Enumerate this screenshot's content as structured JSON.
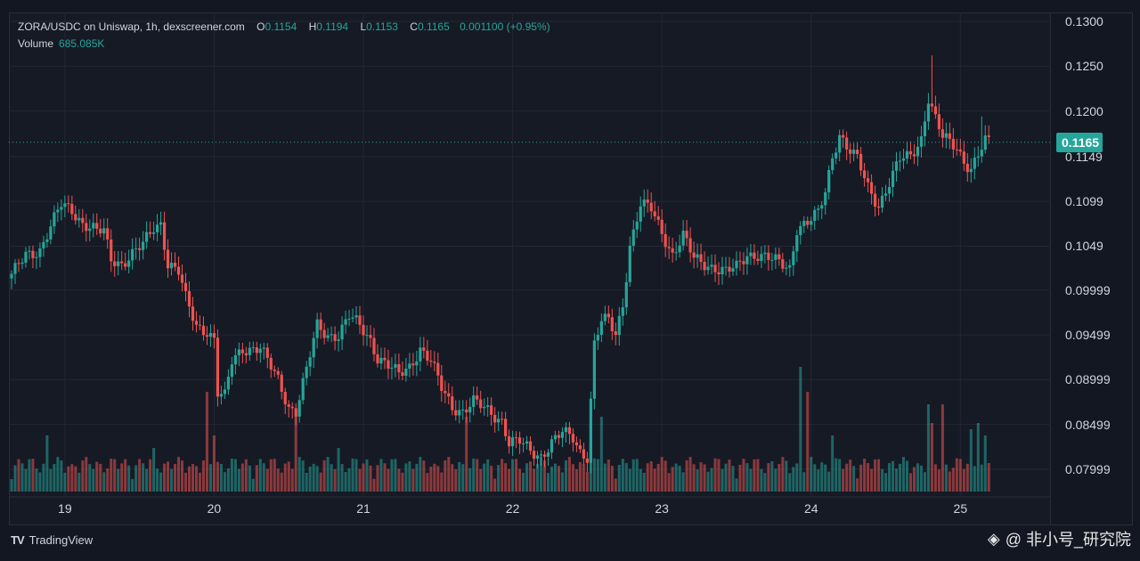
{
  "header": {
    "pair_label": "ZORA/USDC on Uniswap, 1h, dexscreener.com",
    "o_key": "O",
    "o_val": "0.1154",
    "h_key": "H",
    "h_val": "0.1194",
    "l_key": "L",
    "l_val": "0.1153",
    "c_key": "C",
    "c_val": "0.1165",
    "change": "0.001100 (+0.95%)"
  },
  "volume": {
    "label": "Volume",
    "value": "685.085K"
  },
  "footer": {
    "logo_text": "TradingView",
    "watermark": "@ 非小号_研究院"
  },
  "colors": {
    "up": "#26a69a",
    "down": "#ef5350",
    "bg": "#131722",
    "grid": "#232733",
    "last_badge": "#26a69a"
  },
  "chart_data": {
    "type": "candlestick",
    "title": "ZORA/USDC on Uniswap, 1h, dexscreener.com",
    "x_ticks": [
      "19",
      "20",
      "21",
      "22",
      "23",
      "24",
      "25"
    ],
    "y_ticks": [
      "0.1300",
      "0.1250",
      "0.1200",
      "0.1149",
      "0.1099",
      "0.1049",
      "0.09999",
      "0.09499",
      "0.08999",
      "0.08499",
      "0.07999"
    ],
    "ylim": [
      0.0773,
      0.131
    ],
    "last_price": "0.1165",
    "last_price_value": 0.1165,
    "grid": true,
    "anchors": [
      [
        0,
        0.1015
      ],
      [
        4,
        0.104
      ],
      [
        8,
        0.1045
      ],
      [
        11,
        0.107
      ],
      [
        14,
        0.1095
      ],
      [
        17,
        0.109
      ],
      [
        20,
        0.1075
      ],
      [
        24,
        0.1065
      ],
      [
        26,
        0.1065
      ],
      [
        28,
        0.1035
      ],
      [
        31,
        0.103
      ],
      [
        34,
        0.104
      ],
      [
        37,
        0.105
      ],
      [
        40,
        0.107
      ],
      [
        42,
        0.1075
      ],
      [
        44,
        0.103
      ],
      [
        47,
        0.102
      ],
      [
        49,
        0.099
      ],
      [
        52,
        0.096
      ],
      [
        55,
        0.0955
      ],
      [
        57,
        0.0945
      ],
      [
        58,
        0.0885
      ],
      [
        60,
        0.088
      ],
      [
        62,
        0.092
      ],
      [
        65,
        0.0935
      ],
      [
        70,
        0.0935
      ],
      [
        72,
        0.092
      ],
      [
        75,
        0.09
      ],
      [
        78,
        0.087
      ],
      [
        80,
        0.0865
      ],
      [
        83,
        0.091
      ],
      [
        86,
        0.096
      ],
      [
        89,
        0.095
      ],
      [
        92,
        0.095
      ],
      [
        95,
        0.097
      ],
      [
        98,
        0.096
      ],
      [
        101,
        0.0945
      ],
      [
        103,
        0.0925
      ],
      [
        106,
        0.0915
      ],
      [
        109,
        0.0905
      ],
      [
        112,
        0.0915
      ],
      [
        115,
        0.0935
      ],
      [
        118,
        0.092
      ],
      [
        121,
        0.089
      ],
      [
        124,
        0.087
      ],
      [
        127,
        0.0865
      ],
      [
        130,
        0.0875
      ],
      [
        134,
        0.0865
      ],
      [
        138,
        0.0855
      ],
      [
        140,
        0.083
      ],
      [
        143,
        0.083
      ],
      [
        146,
        0.082
      ],
      [
        149,
        0.0815
      ],
      [
        152,
        0.083
      ],
      [
        155,
        0.084
      ],
      [
        158,
        0.0835
      ],
      [
        160,
        0.082
      ],
      [
        162,
        0.0815
      ],
      [
        164,
        0.094
      ],
      [
        166,
        0.0965
      ],
      [
        168,
        0.0965
      ],
      [
        170,
        0.095
      ],
      [
        172,
        0.0985
      ],
      [
        174,
        0.105
      ],
      [
        177,
        0.1095
      ],
      [
        180,
        0.109
      ],
      [
        183,
        0.1065
      ],
      [
        186,
        0.104
      ],
      [
        189,
        0.106
      ],
      [
        192,
        0.1035
      ],
      [
        195,
        0.103
      ],
      [
        198,
        0.1025
      ],
      [
        201,
        0.102
      ],
      [
        204,
        0.1025
      ],
      [
        207,
        0.104
      ],
      [
        210,
        0.104
      ],
      [
        213,
        0.1035
      ],
      [
        216,
        0.103
      ],
      [
        219,
        0.1025
      ],
      [
        221,
        0.107
      ],
      [
        224,
        0.1075
      ],
      [
        227,
        0.1085
      ],
      [
        229,
        0.111
      ],
      [
        231,
        0.115
      ],
      [
        233,
        0.1175
      ],
      [
        235,
        0.116
      ],
      [
        238,
        0.1145
      ],
      [
        241,
        0.1115
      ],
      [
        244,
        0.1095
      ],
      [
        247,
        0.112
      ],
      [
        250,
        0.1145
      ],
      [
        253,
        0.115
      ],
      [
        256,
        0.117
      ],
      [
        258,
        0.1215
      ],
      [
        260,
        0.119
      ],
      [
        262,
        0.117
      ],
      [
        264,
        0.1165
      ],
      [
        266,
        0.116
      ],
      [
        268,
        0.1145
      ],
      [
        270,
        0.1135
      ],
      [
        272,
        0.115
      ],
      [
        274,
        0.1165
      ]
    ],
    "volume_spikes": {
      "10": 0.45,
      "40": 0.35,
      "55": 0.8,
      "57": 0.45,
      "80": 0.65,
      "92": 0.35,
      "128": 0.6,
      "163": 0.55,
      "166": 0.6,
      "222": 1.0,
      "224": 0.8,
      "231": 0.45,
      "258": 0.7,
      "259": 0.55,
      "262": 0.7,
      "270": 0.5,
      "272": 0.55,
      "274": 0.45
    }
  }
}
